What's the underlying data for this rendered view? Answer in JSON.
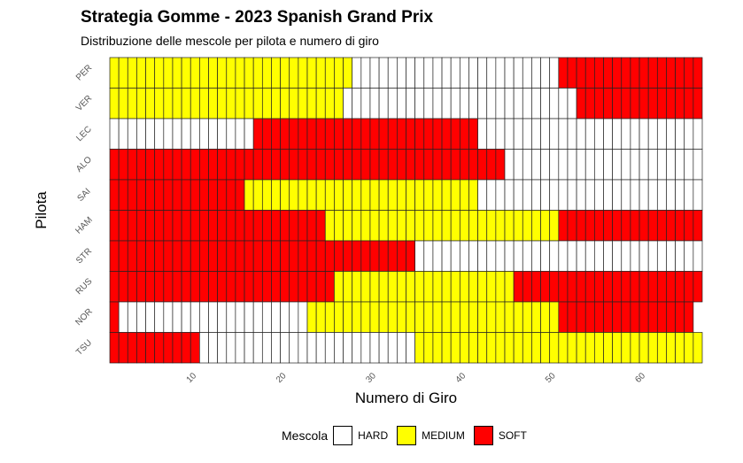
{
  "chart_data": {
    "type": "heatmap",
    "title": "Strategia Gomme - 2023 Spanish Grand Prix",
    "subtitle": "Distribuzione delle mescole per pilota e numero di giro",
    "xlabel": "Numero di Giro",
    "ylabel": "Pilota",
    "x_ticks": [
      10,
      20,
      30,
      40,
      50,
      60
    ],
    "total_laps": 66,
    "legend": {
      "title": "Mescola",
      "items": [
        {
          "label": "HARD",
          "color": "#FFFFFF"
        },
        {
          "label": "MEDIUM",
          "color": "#FFFF00"
        },
        {
          "label": "SOFT",
          "color": "#FF0000"
        }
      ]
    },
    "drivers": [
      {
        "name": "PER",
        "stints": [
          {
            "compound": "MEDIUM",
            "from": 1,
            "to": 27
          },
          {
            "compound": "HARD",
            "from": 28,
            "to": 50
          },
          {
            "compound": "SOFT",
            "from": 51,
            "to": 66
          }
        ]
      },
      {
        "name": "VER",
        "stints": [
          {
            "compound": "MEDIUM",
            "from": 1,
            "to": 26
          },
          {
            "compound": "HARD",
            "from": 27,
            "to": 52
          },
          {
            "compound": "SOFT",
            "from": 53,
            "to": 66
          }
        ]
      },
      {
        "name": "LEC",
        "stints": [
          {
            "compound": "HARD",
            "from": 1,
            "to": 16
          },
          {
            "compound": "SOFT",
            "from": 17,
            "to": 41
          },
          {
            "compound": "HARD",
            "from": 42,
            "to": 66
          }
        ]
      },
      {
        "name": "ALO",
        "stints": [
          {
            "compound": "SOFT",
            "from": 1,
            "to": 44
          },
          {
            "compound": "HARD",
            "from": 45,
            "to": 66
          }
        ]
      },
      {
        "name": "SAI",
        "stints": [
          {
            "compound": "SOFT",
            "from": 1,
            "to": 15
          },
          {
            "compound": "MEDIUM",
            "from": 16,
            "to": 41
          },
          {
            "compound": "HARD",
            "from": 42,
            "to": 66
          }
        ]
      },
      {
        "name": "HAM",
        "stints": [
          {
            "compound": "SOFT",
            "from": 1,
            "to": 24
          },
          {
            "compound": "MEDIUM",
            "from": 25,
            "to": 50
          },
          {
            "compound": "SOFT",
            "from": 51,
            "to": 66
          }
        ]
      },
      {
        "name": "STR",
        "stints": [
          {
            "compound": "SOFT",
            "from": 1,
            "to": 34
          },
          {
            "compound": "HARD",
            "from": 35,
            "to": 66
          }
        ]
      },
      {
        "name": "RUS",
        "stints": [
          {
            "compound": "SOFT",
            "from": 1,
            "to": 25
          },
          {
            "compound": "MEDIUM",
            "from": 26,
            "to": 45
          },
          {
            "compound": "SOFT",
            "from": 46,
            "to": 66
          }
        ]
      },
      {
        "name": "NOR",
        "stints": [
          {
            "compound": "SOFT",
            "from": 1,
            "to": 1
          },
          {
            "compound": "HARD",
            "from": 2,
            "to": 22
          },
          {
            "compound": "MEDIUM",
            "from": 23,
            "to": 50
          },
          {
            "compound": "SOFT",
            "from": 51,
            "to": 65
          }
        ]
      },
      {
        "name": "TSU",
        "stints": [
          {
            "compound": "SOFT",
            "from": 1,
            "to": 10
          },
          {
            "compound": "HARD",
            "from": 11,
            "to": 34
          },
          {
            "compound": "MEDIUM",
            "from": 35,
            "to": 66
          }
        ]
      }
    ]
  }
}
